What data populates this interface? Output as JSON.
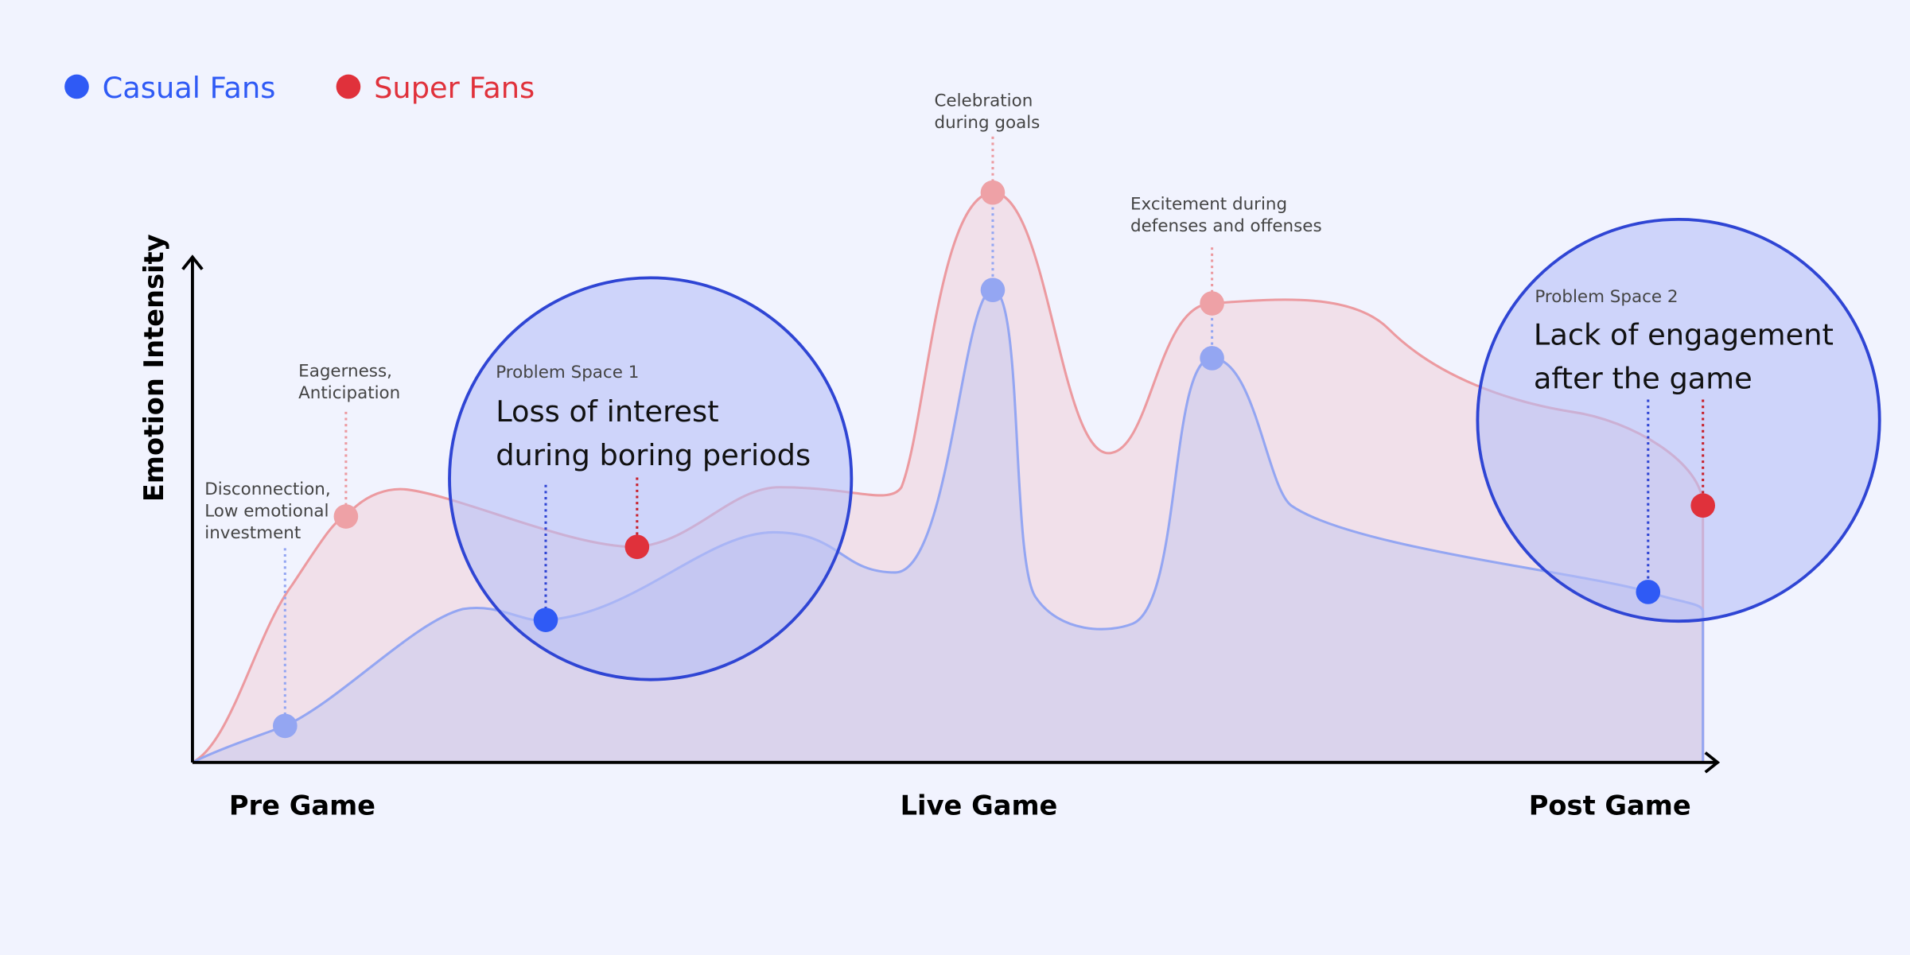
{
  "legend": [
    {
      "label": "Casual Fans"
    },
    {
      "label": "Super Fans"
    }
  ],
  "y_axis_label": "Emotion Intensity",
  "x_axis_labels": [
    "Pre Game",
    "Live Game",
    "Post Game"
  ],
  "annotations": [
    {
      "lines": [
        "Disconnection,",
        "Low emotional",
        "investment"
      ]
    },
    {
      "lines": [
        "Eagerness,",
        "Anticipation"
      ]
    },
    {
      "lines": [
        "Celebration",
        "during goals"
      ]
    },
    {
      "lines": [
        "Excitement during",
        "defenses and offenses"
      ]
    }
  ],
  "problem_spaces": [
    {
      "label": "Problem Space 1",
      "title_lines": [
        "Loss of interest",
        "during boring periods"
      ]
    },
    {
      "label": "Problem Space 2",
      "title_lines": [
        "Lack of engagement",
        "after the game"
      ]
    }
  ]
}
